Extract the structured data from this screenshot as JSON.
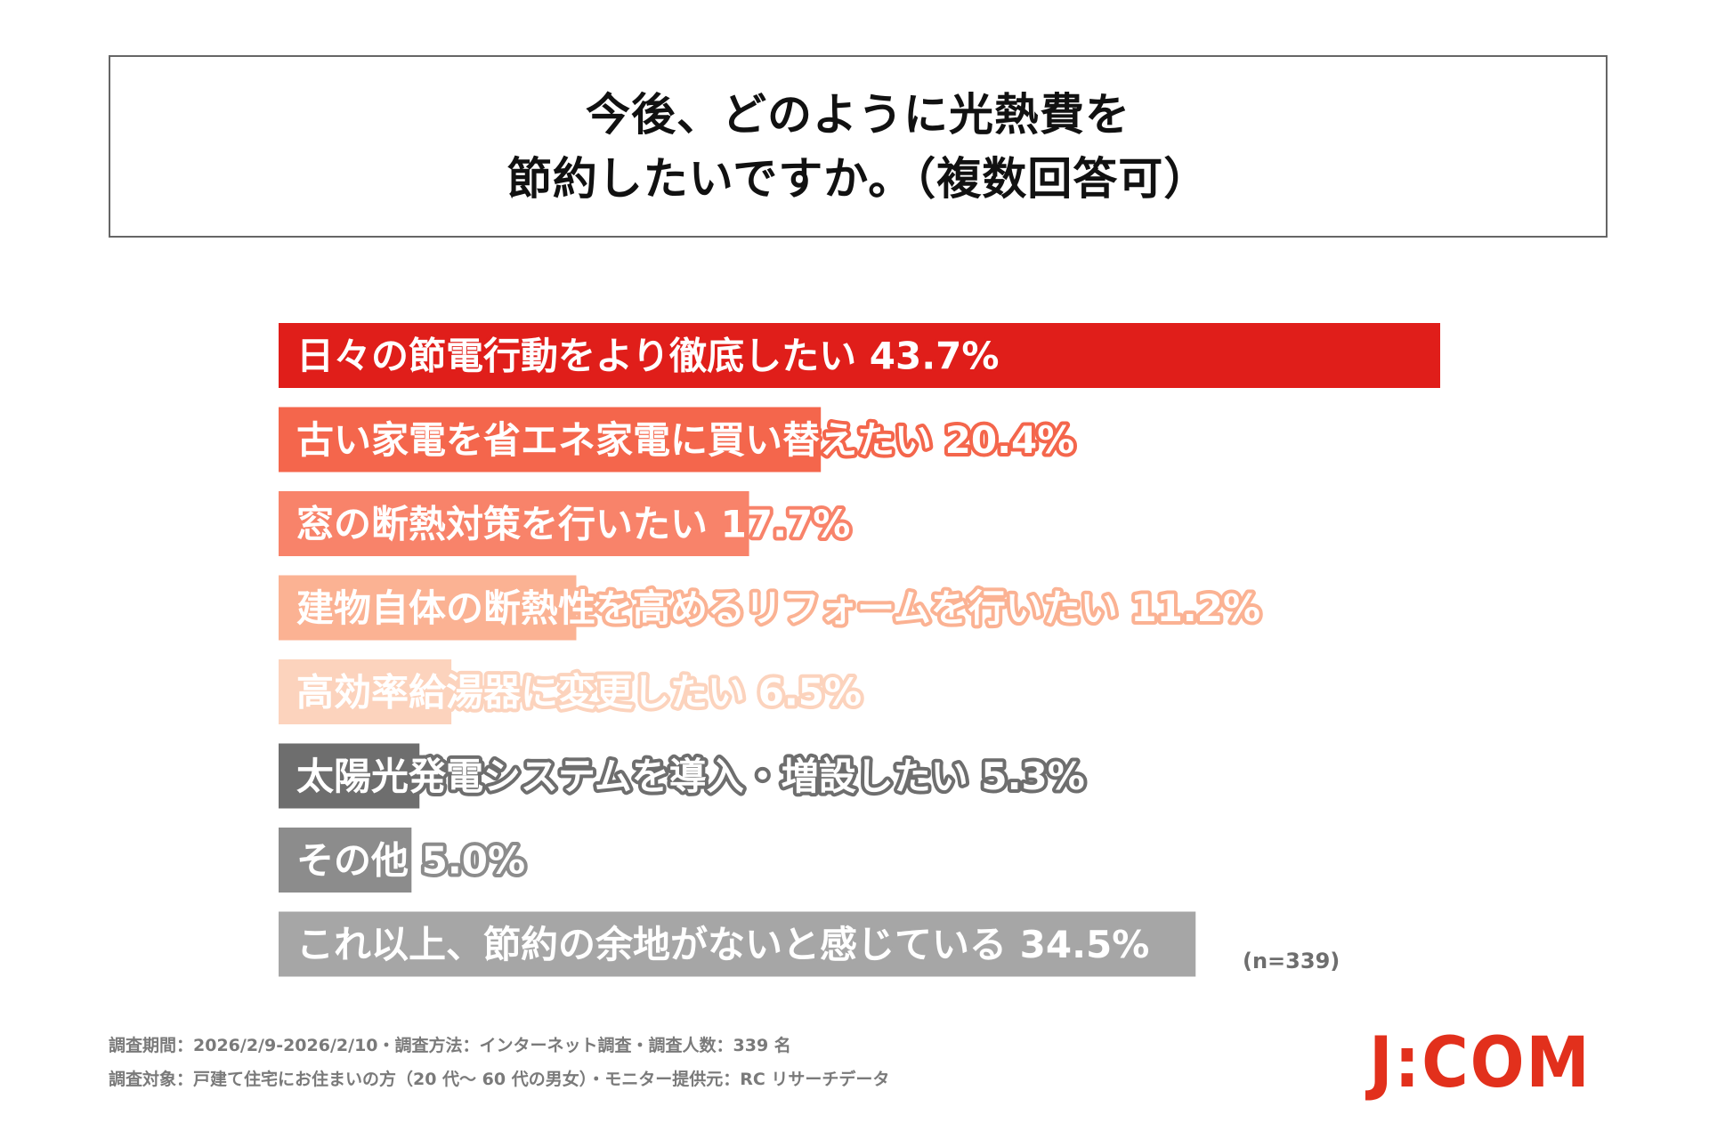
{
  "title": {
    "line1": "今後、どのように光熱費を",
    "line2": "節約したいですか。（複数回答可）"
  },
  "chart_data": {
    "type": "bar",
    "orientation": "horizontal",
    "title": "今後、どのように光熱費を節約したいですか。（複数回答可）",
    "unit": "%",
    "categories": [
      "日々の節電行動をより徹底したい",
      "古い家電を省エネ家電に買い替えたい",
      "窓の断熱対策を行いたい",
      "建物自体の断熱性を高めるリフォームを行いたい",
      "高効率給湯器に変更したい",
      "太陽光発電システムを導入・増設したい",
      "その他",
      "これ以上、節約の余地がないと感じている"
    ],
    "values": [
      43.7,
      20.4,
      17.7,
      11.2,
      6.5,
      5.3,
      5.0,
      34.5
    ],
    "value_labels": [
      "43.7%",
      "20.4%",
      "17.7%",
      "11.2%",
      "6.5%",
      "5.3%",
      "5.0%",
      "34.5%"
    ],
    "colors": [
      "#e01e1a",
      "#f4664c",
      "#f8836a",
      "#fbb293",
      "#fcd3bd",
      "#6e6e6e",
      "#8c8c8c",
      "#a6a6a6"
    ],
    "legend": "none",
    "grid": false
  },
  "sample_note": "(n=339)",
  "footer": {
    "line1": "調査期間：2026/2/9-2026/2/10・調査方法：インターネット調査・調査人数：339 名",
    "line2": "調査対象：戸建て住宅にお住まいの方（20 代～ 60 代の男女）・モニター提供元：RC リサーチデータ"
  },
  "logo_text": "J:COM"
}
